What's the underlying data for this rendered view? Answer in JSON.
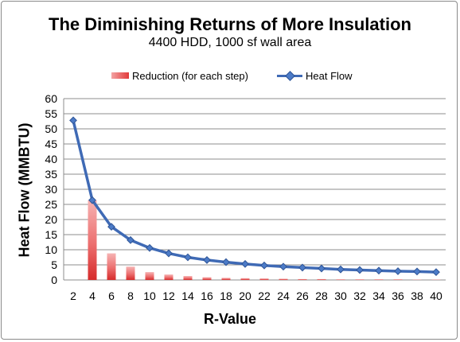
{
  "chart_data": {
    "type": "bar+line",
    "title": "The Diminishing Returns of More Insulation",
    "subtitle": "4400 HDD, 1000 sf wall area",
    "xlabel": "R-Value",
    "ylabel": "Heat Flow (MMBTU)",
    "ylim": [
      0,
      60
    ],
    "yticks": [
      0,
      5,
      10,
      15,
      20,
      25,
      30,
      35,
      40,
      45,
      50,
      55,
      60
    ],
    "grid": true,
    "legend_position": "top",
    "categories": [
      "2",
      "4",
      "6",
      "8",
      "10",
      "12",
      "14",
      "16",
      "18",
      "20",
      "22",
      "24",
      "26",
      "28",
      "30",
      "32",
      "34",
      "36",
      "38",
      "40"
    ],
    "series": [
      {
        "name": "Reduction (for each step)",
        "kind": "bar",
        "color": "#e23a3a",
        "values": [
          0,
          26.4,
          8.8,
          4.4,
          2.6,
          1.8,
          1.3,
          0.9,
          0.7,
          0.6,
          0.5,
          0.4,
          0.3,
          0.3,
          0.2,
          0.2,
          0.2,
          0.2,
          0.1,
          0.1
        ]
      },
      {
        "name": "Heat Flow",
        "kind": "line",
        "color": "#3f6ab5",
        "values": [
          52.8,
          26.4,
          17.6,
          13.2,
          10.6,
          8.8,
          7.5,
          6.6,
          5.9,
          5.3,
          4.8,
          4.4,
          4.1,
          3.8,
          3.5,
          3.3,
          3.1,
          2.9,
          2.8,
          2.6
        ]
      }
    ]
  }
}
